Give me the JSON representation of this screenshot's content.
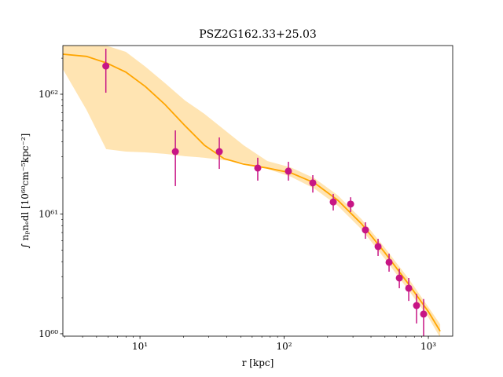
{
  "chart_data": {
    "type": "scatter",
    "title": "PSZ2G162.33+25.03",
    "xlabel": "r [kpc]",
    "ylabel": "∫ nₚnₑdl [10⁶⁰cm⁻⁵kpc⁻²]",
    "xscale": "log",
    "yscale": "log",
    "xlim": [
      2.92,
      1475
    ],
    "ylim": [
      9.55e+59,
      2.55e+62
    ],
    "xticks": [
      {
        "value": 10,
        "label": "10¹"
      },
      {
        "value": 100,
        "label": "10²"
      },
      {
        "value": 1000,
        "label": "10³"
      }
    ],
    "yticks": [
      {
        "value": 1e+60,
        "label": "10⁶⁰"
      },
      {
        "value": 1e+61,
        "label": "10⁶¹"
      },
      {
        "value": 1e+62,
        "label": "10⁶²"
      }
    ],
    "xminorticks": [
      3,
      4,
      5,
      6,
      7,
      8,
      9,
      20,
      30,
      40,
      50,
      60,
      70,
      80,
      90,
      200,
      300,
      400,
      500,
      600,
      700,
      800,
      900
    ],
    "yminorticks": [
      2e+60,
      3e+60,
      4e+60,
      5e+60,
      6e+60,
      7e+60,
      8e+60,
      9e+60,
      2e+61,
      3e+61,
      4e+61,
      5e+61,
      6e+61,
      7e+61,
      8e+61,
      9e+61,
      2e+62
    ],
    "line": {
      "color": "#ffa500",
      "x": [
        2.92,
        4.26,
        5.83,
        7.98,
        10.9,
        14.9,
        20.5,
        28.0,
        38.3,
        52.4,
        76.3,
        111,
        162,
        236,
        344,
        501,
        731,
        1000,
        1208
      ],
      "values": [
        2.16e+62,
        2.07e+62,
        1.83e+62,
        1.53e+62,
        1.16e+62,
        8.22e+61,
        5.47e+61,
        3.75e+61,
        2.9e+61,
        2.61e+61,
        2.42e+61,
        2.21e+61,
        1.82e+61,
        1.3e+61,
        8.28e+60,
        4.73e+60,
        2.59e+60,
        1.53e+60,
        1.05e+60
      ],
      "upper": [
        2.55e+62,
        2.55e+62,
        2.55e+62,
        2.26e+62,
        1.7e+62,
        1.24e+62,
        8.87e+61,
        6.86e+61,
        5.07e+61,
        3.75e+61,
        2.77e+61,
        2.45e+61,
        1.99e+61,
        1.43e+61,
        9.06e+60,
        5.19e+60,
        2.88e+60,
        1.67e+60,
        1.2e+60
      ],
      "lower": [
        1.62e+62,
        7.4e+61,
        3.48e+61,
        3.32e+61,
        3.27e+61,
        3.18e+61,
        3.04e+61,
        2.95e+61,
        2.81e+61,
        2.69e+61,
        2.38e+61,
        2.05e+61,
        1.63e+61,
        1.17e+61,
        7.45e+60,
        4.2e+60,
        2.3e+60,
        1.37e+60,
        9.27e+59
      ]
    },
    "points": {
      "color": "#c71585",
      "x": [
        5.8,
        17.6,
        35.5,
        65.6,
        107,
        158,
        219,
        289,
        366,
        448,
        534,
        629,
        731,
        828,
        927
      ],
      "values": [
        1.72e+62,
        3.32e+61,
        3.32e+61,
        2.42e+61,
        2.28e+61,
        1.82e+61,
        1.26e+61,
        1.21e+61,
        7.35e+60,
        5.35e+60,
        3.95e+60,
        2.92e+60,
        2.4e+60,
        1.72e+60,
        1.46e+60
      ],
      "err_minus": [
        6.9e+61,
        1.61e+61,
        9.4e+60,
        5.2e+60,
        3.8e+60,
        3.1e+60,
        1.9e+60,
        1.7e+60,
        1.14e+60,
        8.9e+59,
        6.5e+59,
        5.2e+59,
        5.2e+59,
        5e+59,
        5.1e+59
      ],
      "err_plus": [
        6.8e+61,
        1.67e+61,
        1.04e+61,
        5.3e+60,
        4.5e+60,
        2.9e+60,
        2.1e+60,
        1.7e+60,
        1.18e+60,
        8.6e+59,
        7.2e+59,
        5.8e+59,
        5.2e+59,
        4.4e+59,
        4.9e+59
      ]
    }
  }
}
